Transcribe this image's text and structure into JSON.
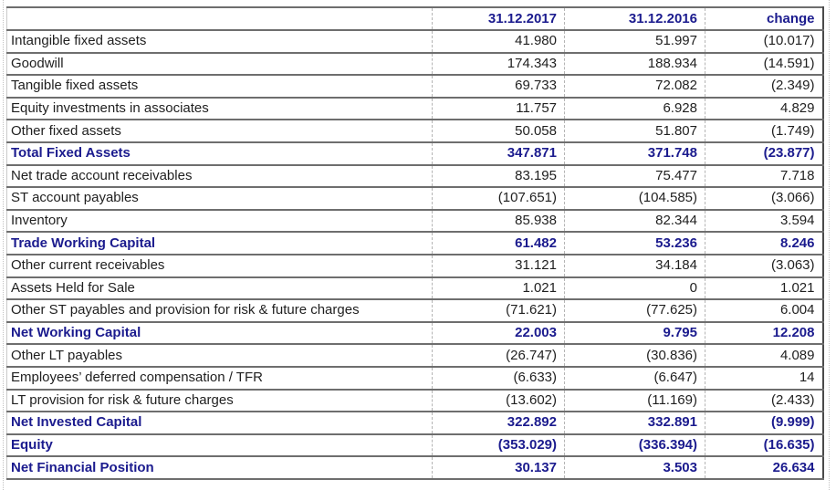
{
  "table": {
    "columns": [
      {
        "label": ""
      },
      {
        "label": "31.12.2017"
      },
      {
        "label": "31.12.2016"
      },
      {
        "label": "change"
      }
    ],
    "rows": [
      {
        "label": "Intangible fixed assets",
        "v2017": "41.980",
        "v2016": "51.997",
        "change": "(10.017)",
        "emphasis": false
      },
      {
        "label": "Goodwill",
        "v2017": "174.343",
        "v2016": "188.934",
        "change": "(14.591)",
        "emphasis": false
      },
      {
        "label": "Tangible fixed assets",
        "v2017": "69.733",
        "v2016": "72.082",
        "change": "(2.349)",
        "emphasis": false
      },
      {
        "label": "Equity investments in associates",
        "v2017": "11.757",
        "v2016": "6.928",
        "change": "4.829",
        "emphasis": false
      },
      {
        "label": "Other fixed assets",
        "v2017": "50.058",
        "v2016": "51.807",
        "change": "(1.749)",
        "emphasis": false
      },
      {
        "label": "Total Fixed Assets",
        "v2017": "347.871",
        "v2016": "371.748",
        "change": "(23.877)",
        "emphasis": true
      },
      {
        "label": "Net trade account receivables",
        "v2017": "83.195",
        "v2016": "75.477",
        "change": "7.718",
        "emphasis": false
      },
      {
        "label": "ST account payables",
        "v2017": "(107.651)",
        "v2016": "(104.585)",
        "change": "(3.066)",
        "emphasis": false
      },
      {
        "label": "Inventory",
        "v2017": "85.938",
        "v2016": "82.344",
        "change": "3.594",
        "emphasis": false
      },
      {
        "label": "Trade Working Capital",
        "v2017": "61.482",
        "v2016": "53.236",
        "change": "8.246",
        "emphasis": true
      },
      {
        "label": "Other current receivables",
        "v2017": "31.121",
        "v2016": "34.184",
        "change": "(3.063)",
        "emphasis": false
      },
      {
        "label": "Assets Held for Sale",
        "v2017": "1.021",
        "v2016": "0",
        "change": "1.021",
        "emphasis": false
      },
      {
        "label": "Other ST payables and provision for risk & future charges",
        "v2017": "(71.621)",
        "v2016": "(77.625)",
        "change": "6.004",
        "emphasis": false
      },
      {
        "label": "Net Working Capital",
        "v2017": "22.003",
        "v2016": "9.795",
        "change": "12.208",
        "emphasis": true
      },
      {
        "label": "Other LT payables",
        "v2017": "(26.747)",
        "v2016": "(30.836)",
        "change": "4.089",
        "emphasis": false
      },
      {
        "label": "Employees’ deferred compensation / TFR",
        "v2017": "(6.633)",
        "v2016": "(6.647)",
        "change": "14",
        "emphasis": false
      },
      {
        "label": "LT provision for risk & future charges",
        "v2017": "(13.602)",
        "v2016": "(11.169)",
        "change": "(2.433)",
        "emphasis": false
      },
      {
        "label": "Net Invested Capital",
        "v2017": "322.892",
        "v2016": "332.891",
        "change": "(9.999)",
        "emphasis": true
      },
      {
        "label": "Equity",
        "v2017": "(353.029)",
        "v2016": "(336.394)",
        "change": "(16.635)",
        "emphasis": true
      },
      {
        "label": "Net Financial Position",
        "v2017": "30.137",
        "v2016": "3.503",
        "change": "26.634",
        "emphasis": true
      }
    ]
  },
  "colors": {
    "accent_navy": "#1b1b8e",
    "body_text": "#1f1f1f",
    "row_border_gray": "#6e6e6e",
    "gridline_gray": "#c2c2c2"
  }
}
